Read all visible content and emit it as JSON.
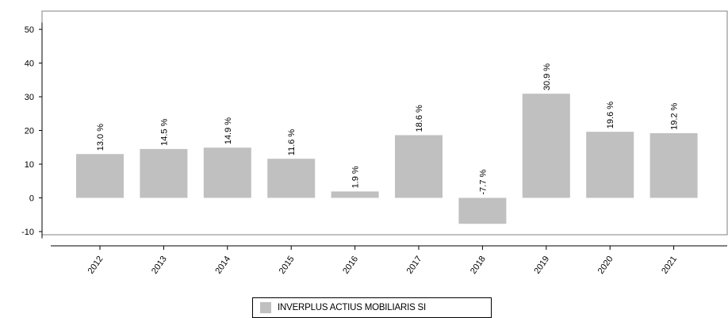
{
  "chart_data": {
    "type": "bar",
    "categories": [
      "2012",
      "2013",
      "2014",
      "2015",
      "2016",
      "2017",
      "2018",
      "2019",
      "2020",
      "2021"
    ],
    "series": [
      {
        "name": "INVERPLUS ACTIUS MOBILIARIS SI",
        "values": [
          13.0,
          14.5,
          14.9,
          11.6,
          1.9,
          18.6,
          -7.7,
          30.9,
          19.6,
          19.2
        ],
        "labels": [
          "13.0 %",
          "14.5 %",
          "14.9 %",
          "11.6 %",
          "1.9 %",
          "18.6 %",
          "-7.7 %",
          "30.9 %",
          "19.6 %",
          "19.2 %"
        ]
      }
    ],
    "yticks": [
      "50",
      "40",
      "30",
      "20",
      "10",
      "0",
      "-10"
    ],
    "ylim": [
      -12,
      52
    ],
    "grid": false,
    "legend_position": "bottom-center"
  },
  "colors": {
    "bar": "#c0c0c0",
    "axis": "#000000",
    "frame": "#808080"
  }
}
